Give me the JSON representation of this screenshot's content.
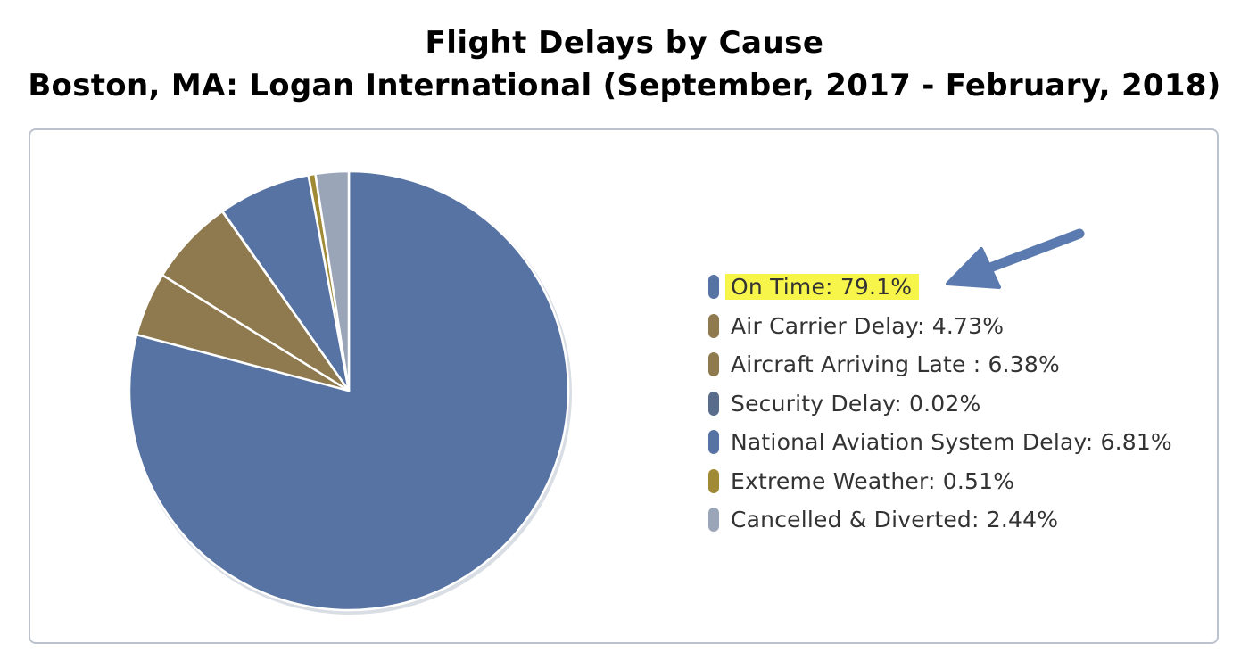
{
  "chart_data": {
    "type": "pie",
    "title": "Flight Delays by Cause",
    "subtitle": "Boston, MA: Logan International (September, 2017 - February, 2018)",
    "legend_position": "right",
    "slices": [
      {
        "label": "On Time: 79.1%",
        "value": 79.1,
        "color": "#5773a3"
      },
      {
        "label": "Air Carrier Delay: 4.73%",
        "value": 4.73,
        "color": "#8e7a4e"
      },
      {
        "label": "Aircraft Arriving Late : 6.38%",
        "value": 6.38,
        "color": "#8e7a4e"
      },
      {
        "label": "Security Delay: 0.02%",
        "value": 0.02,
        "color": "#5a6c8c"
      },
      {
        "label": "National Aviation System Delay: 6.81%",
        "value": 6.81,
        "color": "#5773a3"
      },
      {
        "label": "Extreme Weather: 0.51%",
        "value": 0.51,
        "color": "#a08a35"
      },
      {
        "label": "Cancelled & Diverted: 2.44%",
        "value": 2.44,
        "color": "#9aa5b8"
      }
    ],
    "highlighted_label_index": 0,
    "annotation_arrow_color": "#5b7ab0",
    "highlight_color": "#f7f54a"
  }
}
